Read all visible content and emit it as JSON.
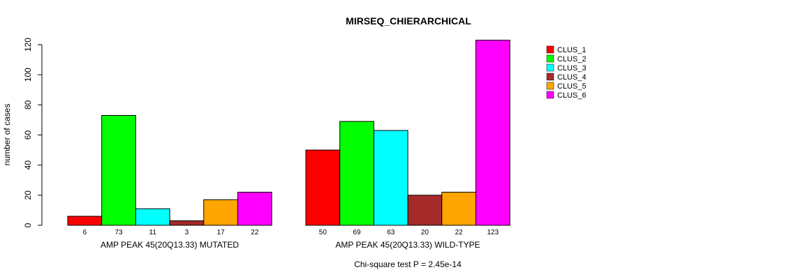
{
  "chart_data": {
    "type": "bar",
    "title": "MIRSEQ_CHIERARCHICAL",
    "ylabel": "number of cases",
    "ylim": [
      0,
      125
    ],
    "yticks": [
      0,
      20,
      40,
      60,
      80,
      100,
      120
    ],
    "groups": [
      "AMP PEAK 45(20Q13.33) MUTATED",
      "AMP PEAK 45(20Q13.33) WILD-TYPE"
    ],
    "series": [
      {
        "name": "CLUS_1",
        "color": "#ff0000",
        "values": [
          6,
          50
        ]
      },
      {
        "name": "CLUS_2",
        "color": "#00ff00",
        "values": [
          73,
          69
        ]
      },
      {
        "name": "CLUS_3",
        "color": "#00ffff",
        "values": [
          11,
          63
        ]
      },
      {
        "name": "CLUS_4",
        "color": "#a52a2a",
        "values": [
          3,
          20
        ]
      },
      {
        "name": "CLUS_5",
        "color": "#ffa500",
        "values": [
          17,
          22
        ]
      },
      {
        "name": "CLUS_6",
        "color": "#ff00ff",
        "values": [
          22,
          123
        ]
      }
    ],
    "legend_position": "top-right",
    "annotation": "Chi-square test P = 2.45e-14"
  }
}
